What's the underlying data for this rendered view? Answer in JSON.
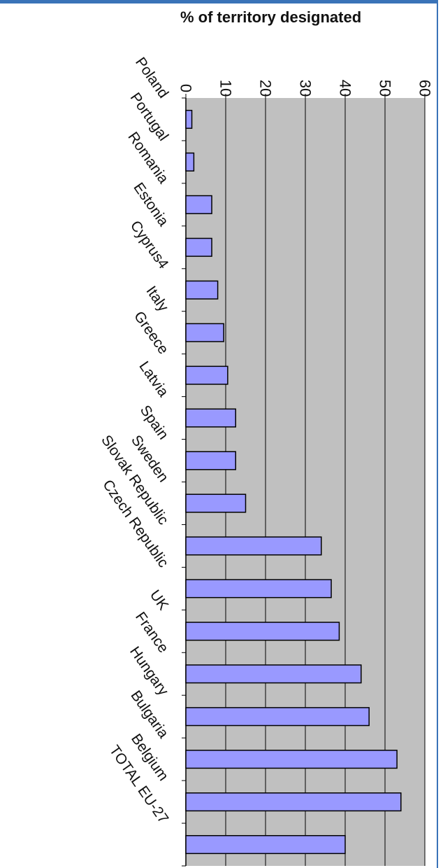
{
  "chart_data": {
    "type": "bar",
    "orientation": "horizontal",
    "title": "% of territory designated",
    "xlabel": "",
    "ylabel": "",
    "xlim": [
      0,
      60
    ],
    "ticks": [
      0,
      10,
      20,
      30,
      40,
      50,
      60
    ],
    "grid": true,
    "categories": [
      "Poland",
      "Portugal",
      "Romania",
      "Estonia",
      "Cyprus4",
      "Italy",
      "Greece",
      "Latvia",
      "Spain",
      "Sweden",
      "Slovak Republic",
      "Czech Republic",
      "UK",
      "France",
      "Hungary",
      "Bulgaria",
      "Belgium",
      "TOTAL EU-27"
    ],
    "values": [
      1.5,
      2,
      6.5,
      6.5,
      8,
      9.5,
      10.5,
      12.5,
      12.5,
      15,
      34,
      36.5,
      38.5,
      44,
      46,
      53,
      54,
      40
    ],
    "colors": {
      "bar_fill": "#9999ff",
      "bar_stroke": "#000000",
      "plot_background": "#c0c0c0",
      "grid": "#000000",
      "frame": "#3a73b8"
    }
  }
}
